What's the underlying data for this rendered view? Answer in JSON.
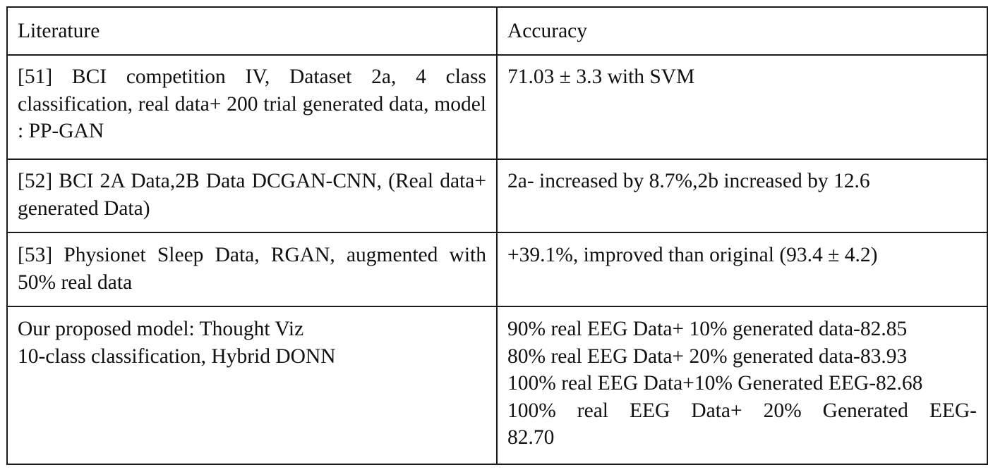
{
  "table": {
    "headers": [
      "Literature",
      "Accuracy"
    ],
    "rows": [
      {
        "literature": "[51] BCI competition IV, Dataset 2a, 4 class classification, real data+ 200 trial generated data, model : PP-GAN",
        "accuracy": [
          "71.03 ± 3.3 with SVM"
        ]
      },
      {
        "literature": "[52] BCI 2A Data,2B Data DCGAN-CNN, (Real data+ generated Data)",
        "accuracy": [
          "2a- increased by 8.7%,2b increased by 12.6"
        ]
      },
      {
        "literature": "[53] Physionet Sleep Data, RGAN, augmented with 50% real data",
        "accuracy": [
          "+39.1%, improved than original (93.4 ± 4.2)"
        ]
      },
      {
        "literature": [
          "Our proposed model: Thought Viz",
          "10-class classification, Hybrid DONN"
        ],
        "accuracy": [
          "90% real EEG Data+ 10% generated data-82.85",
          "80% real EEG Data+ 20% generated data-83.93",
          "100% real EEG Data+10% Generated EEG-82.68",
          "100% real EEG Data+ 20% Generated EEG-",
          "82.70"
        ]
      }
    ]
  }
}
